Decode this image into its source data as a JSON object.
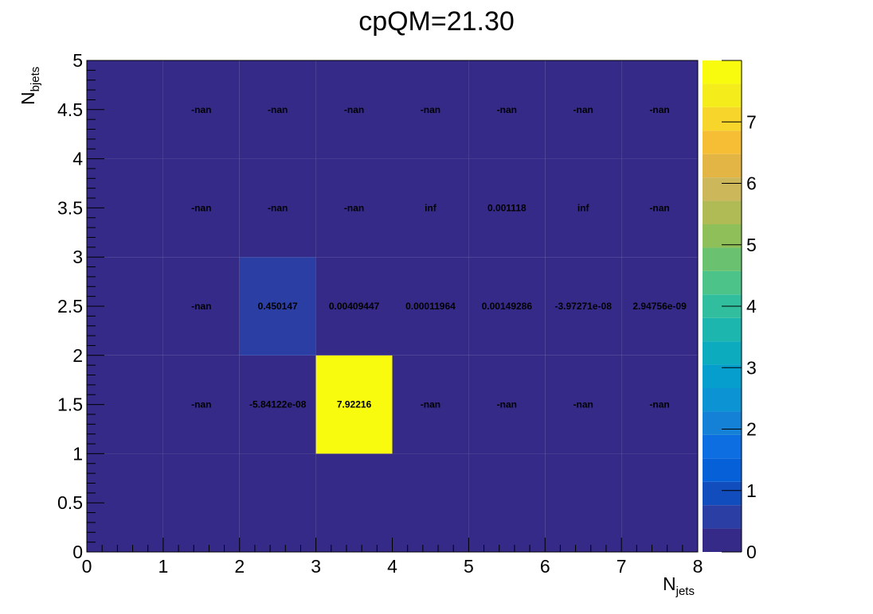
{
  "chart_data": {
    "type": "heatmap",
    "title": "cpQM=21.30",
    "xlabel": "N",
    "xlabel_sub": "jets",
    "ylabel": "N",
    "ylabel_sub": "bjets",
    "x_edges": [
      0,
      1,
      2,
      3,
      4,
      5,
      6,
      7,
      8
    ],
    "y_edges": [
      0,
      1,
      2,
      3,
      4,
      5
    ],
    "xlim": [
      0,
      8
    ],
    "ylim": [
      0,
      5
    ],
    "x_ticks": [
      "0",
      "1",
      "2",
      "3",
      "4",
      "5",
      "6",
      "7",
      "8"
    ],
    "y_ticks": [
      "0",
      "0.5",
      "1",
      "1.5",
      "2",
      "2.5",
      "3",
      "3.5",
      "4",
      "4.5",
      "5"
    ],
    "zlim": [
      0,
      8
    ],
    "z_ticks": [
      "0",
      "1",
      "2",
      "3",
      "4",
      "5",
      "6",
      "7"
    ],
    "colormap": "parula",
    "grid": false,
    "cells": [
      {
        "x": 0.5,
        "y": 0.5,
        "z": 0.0
      },
      {
        "x": 0.5,
        "y": 1.5,
        "z": 0.0
      },
      {
        "x": 0.5,
        "y": 2.5,
        "z": 0.0
      },
      {
        "x": 0.5,
        "y": 3.5,
        "z": 0.0
      },
      {
        "x": 0.5,
        "y": 4.5,
        "z": 0.0
      },
      {
        "x": 1.5,
        "y": 0.5,
        "z": 0.0
      },
      {
        "x": 2.5,
        "y": 0.5,
        "z": 0.0
      },
      {
        "x": 3.5,
        "y": 0.5,
        "z": 0.0
      },
      {
        "x": 4.5,
        "y": 0.5,
        "z": 0.0
      },
      {
        "x": 5.5,
        "y": 0.5,
        "z": 0.0
      },
      {
        "x": 6.5,
        "y": 0.5,
        "z": 0.0
      },
      {
        "x": 7.5,
        "y": 0.5,
        "z": 0.0
      },
      {
        "x": 1.5,
        "y": 1.5,
        "z": null,
        "label": "-nan"
      },
      {
        "x": 2.5,
        "y": 1.5,
        "z": -5.84122e-08,
        "label": "-5.84122e-08"
      },
      {
        "x": 3.5,
        "y": 1.5,
        "z": 7.92216,
        "label": "7.92216"
      },
      {
        "x": 4.5,
        "y": 1.5,
        "z": null,
        "label": "-nan"
      },
      {
        "x": 5.5,
        "y": 1.5,
        "z": null,
        "label": "-nan"
      },
      {
        "x": 6.5,
        "y": 1.5,
        "z": null,
        "label": "-nan"
      },
      {
        "x": 7.5,
        "y": 1.5,
        "z": null,
        "label": "-nan"
      },
      {
        "x": 1.5,
        "y": 2.5,
        "z": null,
        "label": "-nan"
      },
      {
        "x": 2.5,
        "y": 2.5,
        "z": 0.450147,
        "label": "0.450147"
      },
      {
        "x": 3.5,
        "y": 2.5,
        "z": 0.00409447,
        "label": "0.00409447"
      },
      {
        "x": 4.5,
        "y": 2.5,
        "z": 0.00011964,
        "label": "0.00011964"
      },
      {
        "x": 5.5,
        "y": 2.5,
        "z": 0.00149286,
        "label": "0.00149286"
      },
      {
        "x": 6.5,
        "y": 2.5,
        "z": -3.97271e-08,
        "label": "-3.97271e-08"
      },
      {
        "x": 7.5,
        "y": 2.5,
        "z": 2.94756e-09,
        "label": "2.94756e-09"
      },
      {
        "x": 1.5,
        "y": 3.5,
        "z": null,
        "label": "-nan"
      },
      {
        "x": 2.5,
        "y": 3.5,
        "z": null,
        "label": "-nan"
      },
      {
        "x": 3.5,
        "y": 3.5,
        "z": null,
        "label": "-nan"
      },
      {
        "x": 4.5,
        "y": 3.5,
        "z": null,
        "label": "inf"
      },
      {
        "x": 5.5,
        "y": 3.5,
        "z": 0.001118,
        "label": "0.001118"
      },
      {
        "x": 6.5,
        "y": 3.5,
        "z": null,
        "label": "inf"
      },
      {
        "x": 7.5,
        "y": 3.5,
        "z": null,
        "label": "-nan"
      },
      {
        "x": 1.5,
        "y": 4.5,
        "z": null,
        "label": "-nan"
      },
      {
        "x": 2.5,
        "y": 4.5,
        "z": null,
        "label": "-nan"
      },
      {
        "x": 3.5,
        "y": 4.5,
        "z": null,
        "label": "-nan"
      },
      {
        "x": 4.5,
        "y": 4.5,
        "z": null,
        "label": "-nan"
      },
      {
        "x": 5.5,
        "y": 4.5,
        "z": null,
        "label": "-nan"
      },
      {
        "x": 6.5,
        "y": 4.5,
        "z": null,
        "label": "-nan"
      },
      {
        "x": 7.5,
        "y": 4.5,
        "z": null,
        "label": "-nan"
      }
    ],
    "palette": [
      "#352a87",
      "#2a3ea3",
      "#124dbd",
      "#0660d8",
      "#0c6ee1",
      "#1481d6",
      "#0c93d3",
      "#069fcd",
      "#0dabbe",
      "#1db6ae",
      "#31be9e",
      "#4cc388",
      "#6ac270",
      "#8fbf59",
      "#b0bb55",
      "#ccb75a",
      "#e3b545",
      "#f5be35",
      "#f7d52b",
      "#f5ec1b",
      "#f9fb0e"
    ],
    "empty_color": "#352a87"
  }
}
